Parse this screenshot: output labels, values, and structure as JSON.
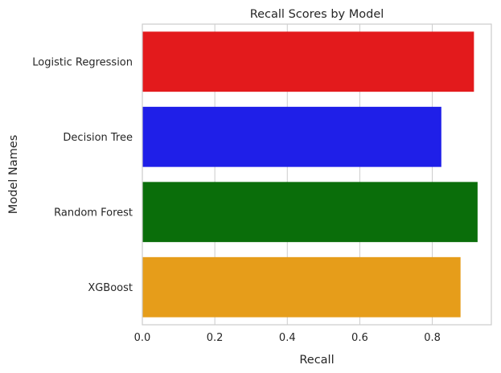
{
  "chart_data": {
    "type": "bar",
    "orientation": "horizontal",
    "title": "Recall Scores by Model",
    "xlabel": "Recall",
    "ylabel": "Model Names",
    "categories": [
      "Logistic Regression",
      "Decision Tree",
      "Random Forest",
      "XGBoost"
    ],
    "values": [
      0.915,
      0.825,
      0.925,
      0.878
    ],
    "colors": [
      "#e31a1c",
      "#1f1fe8",
      "#0a6e0a",
      "#e69d1a"
    ],
    "xlim": [
      0,
      0.963
    ],
    "xticks": [
      0.0,
      0.2,
      0.4,
      0.6,
      0.8
    ],
    "xtick_labels": [
      "0.0",
      "0.2",
      "0.4",
      "0.6",
      "0.8"
    ],
    "grid": "vertical",
    "legend": "none"
  }
}
